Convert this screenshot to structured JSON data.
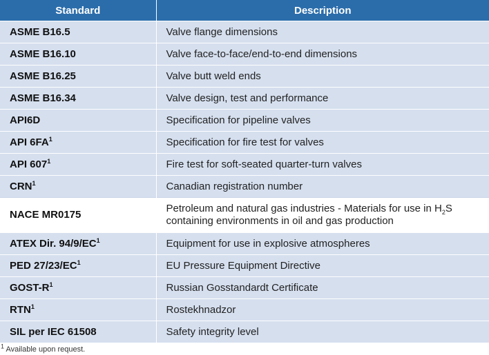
{
  "table": {
    "headers": [
      "Standard",
      "Description"
    ],
    "rows": [
      {
        "standard": "ASME B16.5",
        "sup": "",
        "description": "Valve flange dimensions"
      },
      {
        "standard": "ASME B16.10",
        "sup": "",
        "description": "Valve face-to-face/end-to-end dimensions"
      },
      {
        "standard": "ASME B16.25",
        "sup": "",
        "description": "Valve butt weld ends"
      },
      {
        "standard": "ASME B16.34",
        "sup": "",
        "description": "Valve design, test and performance"
      },
      {
        "standard": "API6D",
        "sup": "",
        "description": "Specification for pipeline valves"
      },
      {
        "standard": "API 6FA",
        "sup": "1",
        "description": "Specification for fire test for valves"
      },
      {
        "standard": "API 607",
        "sup": "1",
        "description": "Fire test for soft-seated quarter-turn valves"
      },
      {
        "standard": "CRN",
        "sup": "1",
        "description": "Canadian registration number"
      },
      {
        "standard": "NACE MR0175",
        "sup": "",
        "description_pre": "Petroleum and natural gas industries - Materials for use in H",
        "description_sub": "2",
        "description_post": "S",
        "description_line2": "containing environments in oil and gas production"
      },
      {
        "standard": "ATEX Dir. 94/9/EC",
        "sup": "1",
        "description": "Equipment for use in explosive atmospheres"
      },
      {
        "standard": "PED 27/23/EC",
        "sup": "1",
        "description": "EU Pressure Equipment Directive"
      },
      {
        "standard": "GOST-R",
        "sup": "1",
        "description": "Russian Gosstandardt Certificate"
      },
      {
        "standard": "RTN",
        "sup": "1",
        "description": "Rostekhnadzor"
      },
      {
        "standard": "SIL per IEC 61508",
        "sup": "",
        "description": "Safety integrity level"
      }
    ]
  },
  "footnote": {
    "marker": "1",
    "text": " Available upon request."
  }
}
